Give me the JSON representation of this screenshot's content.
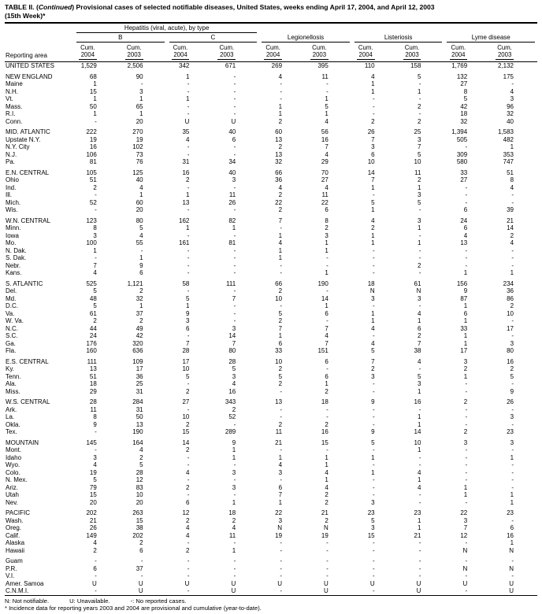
{
  "title": {
    "prefix": "TABLE II. (",
    "continued": "Continued",
    "rest": ") Provisional cases of selected notifiable diseases, United States, weeks ending April 17, 2004, and April 12, 2003",
    "week": "(15th Week)*"
  },
  "header": {
    "reporting_area": "Reporting area",
    "hepatitis_group": "Hepatitis (viral, acute), by type",
    "subgroups": [
      "B",
      "C"
    ],
    "diseases": [
      "Legionellosis",
      "Listeriosis",
      "Lyme disease"
    ],
    "cum_label": "Cum.",
    "years": [
      "2004",
      "2003"
    ]
  },
  "groups": [
    {
      "rows": [
        {
          "area": "UNITED STATES",
          "values": [
            "1,529",
            "2,506",
            "342",
            "671",
            "269",
            "395",
            "110",
            "158",
            "1,769",
            "2,132"
          ]
        }
      ]
    },
    {
      "rows": [
        {
          "area": "NEW ENGLAND",
          "values": [
            "68",
            "90",
            "1",
            "-",
            "4",
            "11",
            "4",
            "5",
            "132",
            "175"
          ]
        },
        {
          "area": "Maine",
          "values": [
            "1",
            "-",
            "-",
            "-",
            "-",
            "-",
            "1",
            "-",
            "27",
            "-"
          ]
        },
        {
          "area": "N.H.",
          "values": [
            "15",
            "3",
            "-",
            "-",
            "-",
            "-",
            "1",
            "1",
            "8",
            "4"
          ]
        },
        {
          "area": "Vt.",
          "values": [
            "1",
            "1",
            "1",
            "-",
            "-",
            "1",
            "-",
            "-",
            "5",
            "3"
          ]
        },
        {
          "area": "Mass.",
          "values": [
            "50",
            "65",
            "-",
            "-",
            "1",
            "5",
            "-",
            "2",
            "42",
            "96"
          ]
        },
        {
          "area": "R.I.",
          "values": [
            "1",
            "1",
            "-",
            "-",
            "1",
            "1",
            "-",
            "-",
            "18",
            "32"
          ]
        },
        {
          "area": "Conn.",
          "values": [
            "-",
            "20",
            "U",
            "U",
            "2",
            "4",
            "2",
            "2",
            "32",
            "40"
          ]
        }
      ]
    },
    {
      "rows": [
        {
          "area": "MID. ATLANTIC",
          "values": [
            "222",
            "270",
            "35",
            "40",
            "60",
            "56",
            "26",
            "25",
            "1,394",
            "1,583"
          ]
        },
        {
          "area": "Upstate N.Y.",
          "values": [
            "19",
            "19",
            "4",
            "6",
            "13",
            "16",
            "7",
            "3",
            "505",
            "482"
          ]
        },
        {
          "area": "N.Y. City",
          "values": [
            "16",
            "102",
            "-",
            "-",
            "2",
            "7",
            "3",
            "7",
            "-",
            "1"
          ]
        },
        {
          "area": "N.J.",
          "values": [
            "106",
            "73",
            "-",
            "-",
            "13",
            "4",
            "6",
            "5",
            "309",
            "353"
          ]
        },
        {
          "area": "Pa.",
          "values": [
            "81",
            "76",
            "31",
            "34",
            "32",
            "29",
            "10",
            "10",
            "580",
            "747"
          ]
        }
      ]
    },
    {
      "rows": [
        {
          "area": "E.N. CENTRAL",
          "values": [
            "105",
            "125",
            "16",
            "40",
            "66",
            "70",
            "14",
            "11",
            "33",
            "51"
          ]
        },
        {
          "area": "Ohio",
          "values": [
            "51",
            "40",
            "2",
            "3",
            "36",
            "27",
            "7",
            "2",
            "27",
            "8"
          ]
        },
        {
          "area": "Ind.",
          "values": [
            "2",
            "4",
            "-",
            "-",
            "4",
            "4",
            "1",
            "1",
            "-",
            "4"
          ]
        },
        {
          "area": "Ill.",
          "values": [
            "-",
            "1",
            "1",
            "11",
            "2",
            "11",
            "-",
            "3",
            "-",
            "-"
          ]
        },
        {
          "area": "Mich.",
          "values": [
            "52",
            "60",
            "13",
            "26",
            "22",
            "22",
            "5",
            "5",
            "-",
            "-"
          ]
        },
        {
          "area": "Wis.",
          "values": [
            "-",
            "20",
            "-",
            "-",
            "2",
            "6",
            "1",
            "-",
            "6",
            "39"
          ]
        }
      ]
    },
    {
      "rows": [
        {
          "area": "W.N. CENTRAL",
          "values": [
            "123",
            "80",
            "162",
            "82",
            "7",
            "8",
            "4",
            "3",
            "24",
            "21"
          ]
        },
        {
          "area": "Minn.",
          "values": [
            "8",
            "5",
            "1",
            "1",
            "-",
            "2",
            "2",
            "1",
            "6",
            "14"
          ]
        },
        {
          "area": "Iowa",
          "values": [
            "3",
            "4",
            "-",
            "-",
            "1",
            "3",
            "1",
            "-",
            "4",
            "2"
          ]
        },
        {
          "area": "Mo.",
          "values": [
            "100",
            "55",
            "161",
            "81",
            "4",
            "1",
            "1",
            "1",
            "13",
            "4"
          ]
        },
        {
          "area": "N. Dak.",
          "values": [
            "1",
            "-",
            "-",
            "-",
            "1",
            "1",
            "-",
            "-",
            "-",
            "-"
          ]
        },
        {
          "area": "S. Dak.",
          "values": [
            "-",
            "1",
            "-",
            "-",
            "1",
            "-",
            "-",
            "-",
            "-",
            "-"
          ]
        },
        {
          "area": "Nebr.",
          "values": [
            "7",
            "9",
            "-",
            "-",
            "-",
            "-",
            "-",
            "2",
            "-",
            "-"
          ]
        },
        {
          "area": "Kans.",
          "values": [
            "4",
            "6",
            "-",
            "-",
            "-",
            "1",
            "-",
            "-",
            "1",
            "1"
          ]
        }
      ]
    },
    {
      "rows": [
        {
          "area": "S. ATLANTIC",
          "values": [
            "525",
            "1,121",
            "58",
            "111",
            "66",
            "190",
            "18",
            "61",
            "156",
            "234"
          ]
        },
        {
          "area": "Del.",
          "values": [
            "5",
            "2",
            "-",
            "-",
            "2",
            "-",
            "N",
            "N",
            "9",
            "36"
          ]
        },
        {
          "area": "Md.",
          "values": [
            "48",
            "32",
            "5",
            "7",
            "10",
            "14",
            "3",
            "3",
            "87",
            "86"
          ]
        },
        {
          "area": "D.C.",
          "values": [
            "5",
            "1",
            "1",
            "-",
            "-",
            "1",
            "-",
            "-",
            "1",
            "2"
          ]
        },
        {
          "area": "Va.",
          "values": [
            "61",
            "37",
            "9",
            "-",
            "5",
            "6",
            "1",
            "4",
            "6",
            "10"
          ]
        },
        {
          "area": "W. Va.",
          "values": [
            "2",
            "2",
            "3",
            "-",
            "2",
            "-",
            "1",
            "1",
            "1",
            "-"
          ]
        },
        {
          "area": "N.C.",
          "values": [
            "44",
            "49",
            "6",
            "3",
            "7",
            "7",
            "4",
            "6",
            "33",
            "17"
          ]
        },
        {
          "area": "S.C.",
          "values": [
            "24",
            "42",
            "-",
            "14",
            "1",
            "4",
            "-",
            "2",
            "1",
            "-"
          ]
        },
        {
          "area": "Ga.",
          "values": [
            "176",
            "320",
            "7",
            "7",
            "6",
            "7",
            "4",
            "7",
            "1",
            "3"
          ]
        },
        {
          "area": "Fla.",
          "values": [
            "160",
            "636",
            "28",
            "80",
            "33",
            "151",
            "5",
            "38",
            "17",
            "80"
          ]
        }
      ]
    },
    {
      "rows": [
        {
          "area": "E.S. CENTRAL",
          "values": [
            "111",
            "109",
            "17",
            "28",
            "10",
            "6",
            "7",
            "4",
            "3",
            "16"
          ]
        },
        {
          "area": "Ky.",
          "values": [
            "13",
            "17",
            "10",
            "5",
            "2",
            "-",
            "2",
            "-",
            "2",
            "2"
          ]
        },
        {
          "area": "Tenn.",
          "values": [
            "51",
            "36",
            "5",
            "3",
            "5",
            "6",
            "3",
            "5",
            "1",
            "5"
          ]
        },
        {
          "area": "Ala.",
          "values": [
            "18",
            "25",
            "-",
            "4",
            "2",
            "1",
            "-",
            "3",
            "-",
            "-"
          ]
        },
        {
          "area": "Miss.",
          "values": [
            "29",
            "31",
            "2",
            "16",
            "-",
            "2",
            "-",
            "1",
            "-",
            "9"
          ]
        }
      ]
    },
    {
      "rows": [
        {
          "area": "W.S. CENTRAL",
          "values": [
            "28",
            "284",
            "27",
            "343",
            "13",
            "18",
            "9",
            "16",
            "2",
            "26"
          ]
        },
        {
          "area": "Ark.",
          "values": [
            "11",
            "31",
            "-",
            "2",
            "-",
            "-",
            "-",
            "-",
            "-",
            "-"
          ]
        },
        {
          "area": "La.",
          "values": [
            "8",
            "50",
            "10",
            "52",
            "-",
            "-",
            "-",
            "1",
            "-",
            "3"
          ]
        },
        {
          "area": "Okla.",
          "values": [
            "9",
            "13",
            "2",
            "-",
            "2",
            "2",
            "-",
            "1",
            "-",
            "-"
          ]
        },
        {
          "area": "Tex.",
          "values": [
            "-",
            "190",
            "15",
            "289",
            "11",
            "16",
            "9",
            "14",
            "2",
            "23"
          ]
        }
      ]
    },
    {
      "rows": [
        {
          "area": "MOUNTAIN",
          "values": [
            "145",
            "164",
            "14",
            "9",
            "21",
            "15",
            "5",
            "10",
            "3",
            "3"
          ]
        },
        {
          "area": "Mont.",
          "values": [
            "-",
            "4",
            "2",
            "1",
            "-",
            "-",
            "-",
            "1",
            "-",
            "-"
          ]
        },
        {
          "area": "Idaho",
          "values": [
            "3",
            "2",
            "-",
            "1",
            "1",
            "1",
            "1",
            "-",
            "-",
            "1"
          ]
        },
        {
          "area": "Wyo.",
          "values": [
            "4",
            "5",
            "-",
            "-",
            "4",
            "1",
            "-",
            "-",
            "-",
            "-"
          ]
        },
        {
          "area": "Colo.",
          "values": [
            "19",
            "28",
            "4",
            "3",
            "3",
            "4",
            "1",
            "4",
            "-",
            "-"
          ]
        },
        {
          "area": "N. Mex.",
          "values": [
            "5",
            "12",
            "-",
            "-",
            "-",
            "1",
            "-",
            "1",
            "-",
            "-"
          ]
        },
        {
          "area": "Ariz.",
          "values": [
            "79",
            "83",
            "2",
            "3",
            "6",
            "4",
            "-",
            "4",
            "1",
            "-"
          ]
        },
        {
          "area": "Utah",
          "values": [
            "15",
            "10",
            "-",
            "-",
            "7",
            "2",
            "-",
            "-",
            "1",
            "1"
          ]
        },
        {
          "area": "Nev.",
          "values": [
            "20",
            "20",
            "6",
            "1",
            "1",
            "2",
            "3",
            "-",
            "-",
            "1"
          ]
        }
      ]
    },
    {
      "rows": [
        {
          "area": "PACIFIC",
          "values": [
            "202",
            "263",
            "12",
            "18",
            "22",
            "21",
            "23",
            "23",
            "22",
            "23"
          ]
        },
        {
          "area": "Wash.",
          "values": [
            "21",
            "15",
            "2",
            "2",
            "3",
            "2",
            "5",
            "1",
            "3",
            "-"
          ]
        },
        {
          "area": "Oreg.",
          "values": [
            "26",
            "38",
            "4",
            "4",
            "N",
            "N",
            "3",
            "1",
            "7",
            "6"
          ]
        },
        {
          "area": "Calif.",
          "values": [
            "149",
            "202",
            "4",
            "11",
            "19",
            "19",
            "15",
            "21",
            "12",
            "16"
          ]
        },
        {
          "area": "Alaska",
          "values": [
            "4",
            "2",
            "-",
            "-",
            "-",
            "-",
            "-",
            "-",
            "-",
            "1"
          ]
        },
        {
          "area": "Hawaii",
          "values": [
            "2",
            "6",
            "2",
            "1",
            "-",
            "-",
            "-",
            "-",
            "N",
            "N"
          ]
        }
      ]
    },
    {
      "rows": [
        {
          "area": "Guam",
          "values": [
            "-",
            "-",
            "-",
            "-",
            "-",
            "-",
            "-",
            "-",
            "-",
            "-"
          ]
        },
        {
          "area": "P.R.",
          "values": [
            "6",
            "37",
            "-",
            "-",
            "-",
            "-",
            "-",
            "-",
            "N",
            "N"
          ]
        },
        {
          "area": "V.I.",
          "values": [
            "-",
            "-",
            "-",
            "-",
            "-",
            "-",
            "-",
            "-",
            "-",
            "-"
          ]
        },
        {
          "area": "Amer. Samoa",
          "values": [
            "U",
            "U",
            "U",
            "U",
            "U",
            "U",
            "U",
            "U",
            "U",
            "U"
          ]
        },
        {
          "area": "C.N.M.I.",
          "values": [
            "-",
            "U",
            "-",
            "U",
            "-",
            "U",
            "-",
            "U",
            "-",
            "U"
          ]
        }
      ]
    }
  ],
  "footnotes": {
    "legend": [
      "N: Not notifiable.",
      "U: Unavailable.",
      "-: No reported cases."
    ],
    "note": "* Incidence data for reporting years 2003 and 2004 are provisional and cumulative (year-to-date)."
  }
}
